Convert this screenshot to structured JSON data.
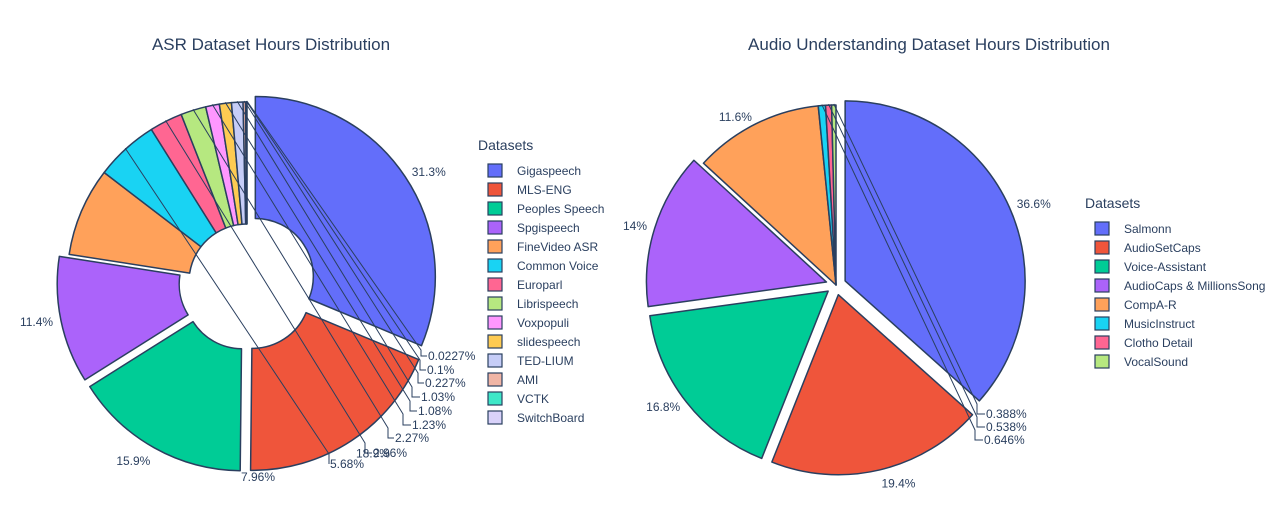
{
  "chart_data": [
    {
      "type": "pie",
      "title": "ASR Dataset Hours Distribution",
      "legend_title": "Datasets",
      "legend_placement": "right",
      "categories": [
        "Gigaspeech",
        "MLS-ENG",
        "Peoples Speech",
        "Spgispeech",
        "FineVideo ASR",
        "Common Voice",
        "Europarl",
        "Librispeech",
        "Voxpopuli",
        "slidespeech",
        "TED-LIUM",
        "AMI",
        "VCTK",
        "SwitchBoard"
      ],
      "values": [
        31.3,
        18.9,
        15.9,
        11.4,
        7.96,
        5.68,
        2.96,
        2.27,
        1.23,
        1.08,
        1.03,
        0.227,
        0.1,
        0.0227
      ],
      "labels": [
        "31.3%",
        "18.9%",
        "15.9%",
        "11.4%",
        "7.96%",
        "5.68%",
        "2.96%",
        "2.27%",
        "1.23%",
        "1.08%",
        "1.03%",
        "0.227%",
        "0.1%",
        "0.0227%"
      ],
      "colors": [
        "#636efa",
        "#EF553B",
        "#00cc96",
        "#ab63fa",
        "#FFA15A",
        "#19d3f3",
        "#FF6692",
        "#B6E880",
        "#FF97FF",
        "#FECB52",
        "#c6cdf7",
        "#f0b5a5",
        "#3ee8c8",
        "#d9d2fa"
      ]
    },
    {
      "type": "pie",
      "title": "Audio Understanding Dataset Hours Distribution",
      "legend_title": "Datasets",
      "legend_placement": "right",
      "categories": [
        "Salmonn",
        "AudioSetCaps",
        "Voice-Assistant",
        "AudioCaps & MillionsSong",
        "CompA-R",
        "MusicInstruct",
        "Clotho Detail",
        "VocalSound"
      ],
      "values": [
        36.6,
        19.4,
        16.8,
        14,
        11.6,
        0.646,
        0.538,
        0.388
      ],
      "labels": [
        "36.6%",
        "19.4%",
        "16.8%",
        "14%",
        "11.6%",
        "0.646%",
        "0.538%",
        "0.388%"
      ],
      "colors": [
        "#636efa",
        "#EF553B",
        "#00cc96",
        "#ab63fa",
        "#FFA15A",
        "#19d3f3",
        "#FF6692",
        "#B6E880"
      ]
    }
  ]
}
